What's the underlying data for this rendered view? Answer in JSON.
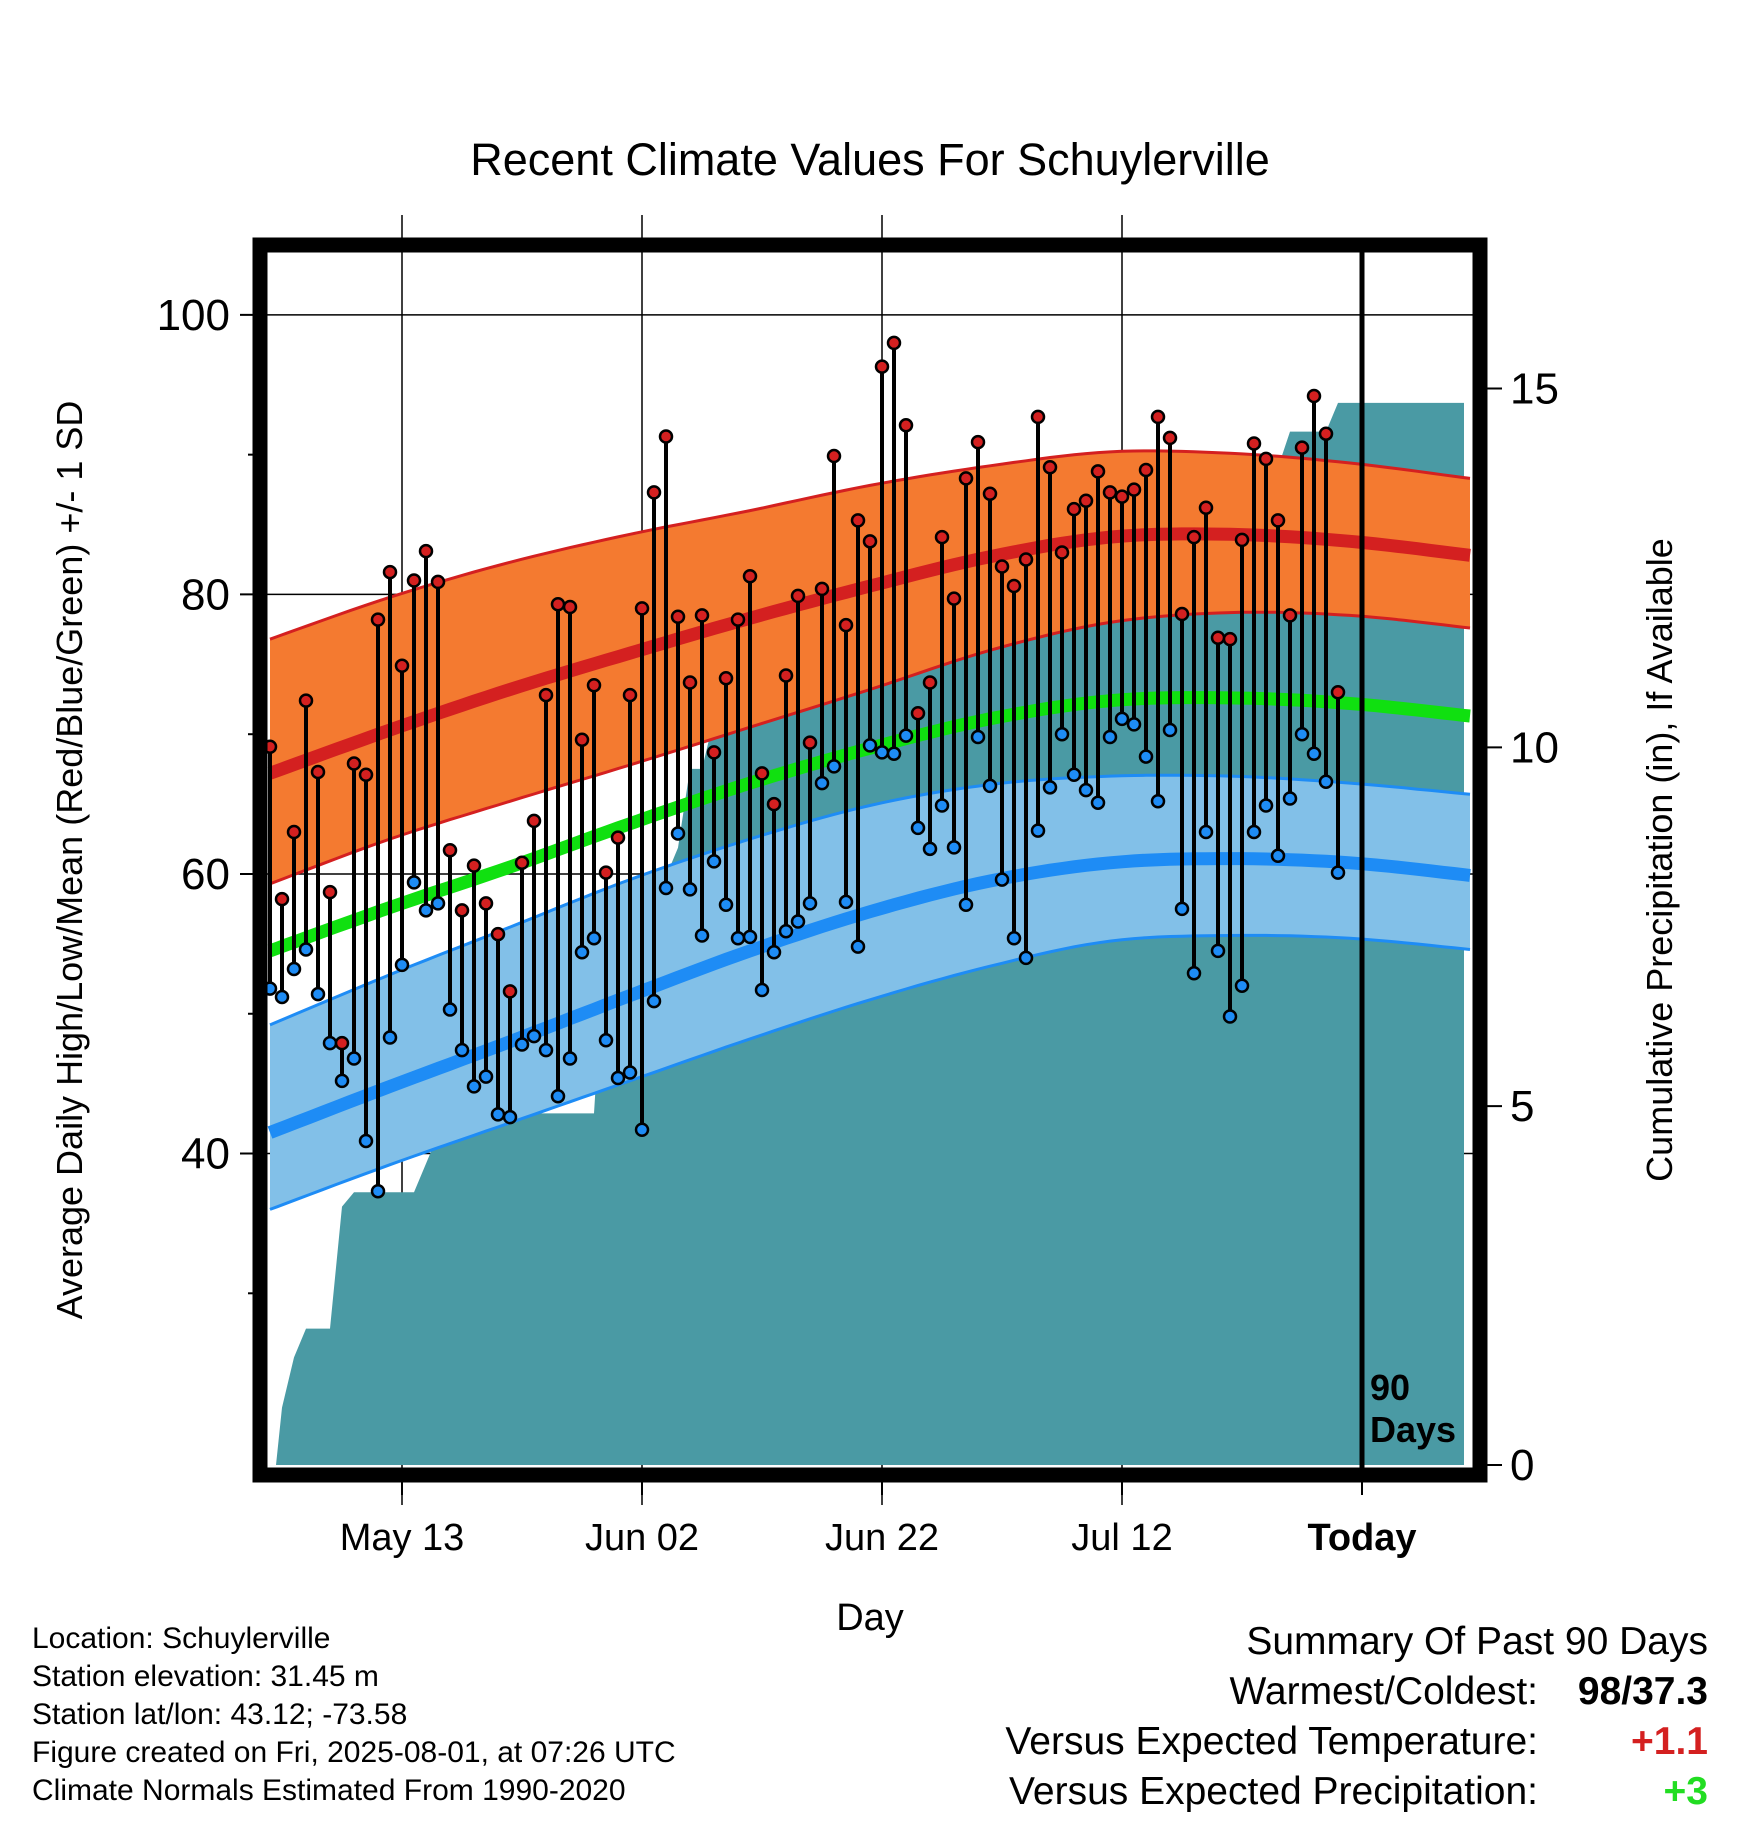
{
  "chart_data": {
    "type": "line",
    "title": "Recent Climate Values For Schuylerville",
    "xlabel": "Day",
    "ylabel": "Average Daily High/Low/Mean (Red/Blue/Green) +/- 1 SD",
    "y2label": "Cumulative Precipitation (in), If Available",
    "x_tick_labels": [
      "May 13",
      "Jun 02",
      "Jun 22",
      "Jul 12",
      "Today"
    ],
    "x_tick_days": [
      11,
      31,
      51,
      71,
      91
    ],
    "x_range_days": [
      0,
      100
    ],
    "ylim": [
      17,
      105
    ],
    "y_ticks": [
      40,
      60,
      80,
      100
    ],
    "y2lim": [
      0,
      17
    ],
    "y2_ticks": [
      0,
      5,
      10,
      15
    ],
    "today_day": 91,
    "today_label": "90 Days",
    "colors": {
      "high_band": "#f47a30",
      "high_mean": "#d42020",
      "low_band": "#82c0e8",
      "low_mean": "#1e8cf5",
      "mean_line": "#10e010",
      "precip": "#4a9aa4",
      "high_marker": "#d42020",
      "low_marker": "#1e8cf5"
    },
    "normal_high_mean": [
      [
        0,
        67.2
      ],
      [
        10,
        70.3
      ],
      [
        20,
        73.2
      ],
      [
        30,
        75.8
      ],
      [
        40,
        78.3
      ],
      [
        50,
        80.6
      ],
      [
        60,
        82.7
      ],
      [
        70,
        84.1
      ],
      [
        80,
        84.3
      ],
      [
        90,
        83.8
      ],
      [
        100,
        82.8
      ]
    ],
    "normal_high_upper": [
      [
        0,
        76.8
      ],
      [
        10,
        79.8
      ],
      [
        20,
        82.3
      ],
      [
        30,
        84.3
      ],
      [
        40,
        86.0
      ],
      [
        50,
        87.8
      ],
      [
        60,
        89.2
      ],
      [
        70,
        90.2
      ],
      [
        80,
        90.1
      ],
      [
        90,
        89.4
      ],
      [
        100,
        88.3
      ]
    ],
    "normal_high_lower": [
      [
        0,
        59.3
      ],
      [
        10,
        62.5
      ],
      [
        20,
        65.2
      ],
      [
        30,
        67.8
      ],
      [
        40,
        70.5
      ],
      [
        50,
        73.2
      ],
      [
        60,
        76.0
      ],
      [
        70,
        78.0
      ],
      [
        80,
        78.7
      ],
      [
        90,
        78.5
      ],
      [
        100,
        77.6
      ]
    ],
    "normal_low_mean": [
      [
        0,
        41.5
      ],
      [
        10,
        44.8
      ],
      [
        20,
        48.0
      ],
      [
        30,
        51.3
      ],
      [
        40,
        54.5
      ],
      [
        50,
        57.3
      ],
      [
        60,
        59.5
      ],
      [
        70,
        60.8
      ],
      [
        80,
        61.1
      ],
      [
        90,
        60.8
      ],
      [
        100,
        59.9
      ]
    ],
    "normal_low_upper": [
      [
        0,
        49.2
      ],
      [
        10,
        52.8
      ],
      [
        20,
        56.2
      ],
      [
        30,
        59.6
      ],
      [
        40,
        62.5
      ],
      [
        50,
        64.9
      ],
      [
        60,
        66.4
      ],
      [
        70,
        67.0
      ],
      [
        80,
        67.0
      ],
      [
        90,
        66.5
      ],
      [
        100,
        65.7
      ]
    ],
    "normal_low_lower": [
      [
        0,
        36.0
      ],
      [
        10,
        39.2
      ],
      [
        20,
        42.2
      ],
      [
        30,
        45.2
      ],
      [
        40,
        48.2
      ],
      [
        50,
        51.0
      ],
      [
        60,
        53.4
      ],
      [
        70,
        55.2
      ],
      [
        80,
        55.6
      ],
      [
        90,
        55.4
      ],
      [
        100,
        54.6
      ]
    ],
    "normal_mean": [
      [
        0,
        54.5
      ],
      [
        10,
        57.6
      ],
      [
        20,
        60.5
      ],
      [
        30,
        63.6
      ],
      [
        40,
        66.5
      ],
      [
        50,
        69.0
      ],
      [
        60,
        71.1
      ],
      [
        70,
        72.4
      ],
      [
        80,
        72.6
      ],
      [
        90,
        72.2
      ],
      [
        100,
        71.3
      ]
    ],
    "daily": [
      {
        "day": 0,
        "high": 69.1,
        "low": 51.8
      },
      {
        "day": 1,
        "high": 58.2,
        "low": 51.2
      },
      {
        "day": 2,
        "high": 63.0,
        "low": 53.2
      },
      {
        "day": 3,
        "high": 72.4,
        "low": 54.6
      },
      {
        "day": 4,
        "high": 67.3,
        "low": 51.4
      },
      {
        "day": 5,
        "high": 58.7,
        "low": 47.9
      },
      {
        "day": 6,
        "high": 47.9,
        "low": 45.2
      },
      {
        "day": 7,
        "high": 67.9,
        "low": 46.8
      },
      {
        "day": 8,
        "high": 67.1,
        "low": 40.9
      },
      {
        "day": 9,
        "high": 78.2,
        "low": 37.3
      },
      {
        "day": 10,
        "high": 81.6,
        "low": 48.3
      },
      {
        "day": 11,
        "high": 74.9,
        "low": 53.5
      },
      {
        "day": 12,
        "high": 81.0,
        "low": 59.4
      },
      {
        "day": 13,
        "high": 83.1,
        "low": 57.4
      },
      {
        "day": 14,
        "high": 80.9,
        "low": 57.9
      },
      {
        "day": 15,
        "high": 61.7,
        "low": 50.3
      },
      {
        "day": 16,
        "high": 57.4,
        "low": 47.4
      },
      {
        "day": 17,
        "high": 60.6,
        "low": 44.8
      },
      {
        "day": 18,
        "high": 57.9,
        "low": 45.5
      },
      {
        "day": 19,
        "high": 55.7,
        "low": 42.8
      },
      {
        "day": 20,
        "high": 51.6,
        "low": 42.6
      },
      {
        "day": 21,
        "high": 60.8,
        "low": 47.8
      },
      {
        "day": 22,
        "high": 63.8,
        "low": 48.4
      },
      {
        "day": 23,
        "high": 72.8,
        "low": 47.4
      },
      {
        "day": 24,
        "high": 79.3,
        "low": 44.1
      },
      {
        "day": 25,
        "high": 79.1,
        "low": 46.8
      },
      {
        "day": 26,
        "high": 69.6,
        "low": 54.4
      },
      {
        "day": 27,
        "high": 73.5,
        "low": 55.4
      },
      {
        "day": 28,
        "high": 60.1,
        "low": 48.1
      },
      {
        "day": 29,
        "high": 62.6,
        "low": 45.4
      },
      {
        "day": 30,
        "high": 72.8,
        "low": 45.8
      },
      {
        "day": 31,
        "high": 79.0,
        "low": 41.7
      },
      {
        "day": 32,
        "high": 87.3,
        "low": 50.9
      },
      {
        "day": 33,
        "high": 91.3,
        "low": 59.0
      },
      {
        "day": 34,
        "high": 78.4,
        "low": 62.9
      },
      {
        "day": 35,
        "high": 73.7,
        "low": 58.9
      },
      {
        "day": 36,
        "high": 78.5,
        "low": 55.6
      },
      {
        "day": 37,
        "high": 68.7,
        "low": 60.9
      },
      {
        "day": 38,
        "high": 74.0,
        "low": 57.8
      },
      {
        "day": 39,
        "high": 78.2,
        "low": 55.4
      },
      {
        "day": 40,
        "high": 81.3,
        "low": 55.5
      },
      {
        "day": 41,
        "high": 67.2,
        "low": 51.7
      },
      {
        "day": 42,
        "high": 65.0,
        "low": 54.4
      },
      {
        "day": 43,
        "high": 74.2,
        "low": 55.9
      },
      {
        "day": 44,
        "high": 79.9,
        "low": 56.6
      },
      {
        "day": 45,
        "high": 69.4,
        "low": 57.9
      },
      {
        "day": 46,
        "high": 80.4,
        "low": 66.5
      },
      {
        "day": 47,
        "high": 89.9,
        "low": 67.7
      },
      {
        "day": 48,
        "high": 77.8,
        "low": 58.0
      },
      {
        "day": 49,
        "high": 85.3,
        "low": 54.8
      },
      {
        "day": 50,
        "high": 83.8,
        "low": 69.2
      },
      {
        "day": 51,
        "high": 96.3,
        "low": 68.7
      },
      {
        "day": 52,
        "high": 98.0,
        "low": 68.6
      },
      {
        "day": 53,
        "high": 92.1,
        "low": 69.9
      },
      {
        "day": 54,
        "high": 71.5,
        "low": 63.3
      },
      {
        "day": 55,
        "high": 73.7,
        "low": 61.8
      },
      {
        "day": 56,
        "high": 84.1,
        "low": 64.9
      },
      {
        "day": 57,
        "high": 79.7,
        "low": 61.9
      },
      {
        "day": 58,
        "high": 88.3,
        "low": 57.8
      },
      {
        "day": 59,
        "high": 90.9,
        "low": 69.8
      },
      {
        "day": 60,
        "high": 87.2,
        "low": 66.3
      },
      {
        "day": 61,
        "high": 82.0,
        "low": 59.6
      },
      {
        "day": 62,
        "high": 80.6,
        "low": 55.4
      },
      {
        "day": 63,
        "high": 82.5,
        "low": 54.0
      },
      {
        "day": 64,
        "high": 92.7,
        "low": 63.1
      },
      {
        "day": 65,
        "high": 89.1,
        "low": 66.2
      },
      {
        "day": 66,
        "high": 83.0,
        "low": 70.0
      },
      {
        "day": 67,
        "high": 86.1,
        "low": 67.1
      },
      {
        "day": 68,
        "high": 86.7,
        "low": 66.0
      },
      {
        "day": 69,
        "high": 88.8,
        "low": 65.1
      },
      {
        "day": 70,
        "high": 87.3,
        "low": 69.8
      },
      {
        "day": 71,
        "high": 87.0,
        "low": 71.1
      },
      {
        "day": 72,
        "high": 87.5,
        "low": 70.7
      },
      {
        "day": 73,
        "high": 88.9,
        "low": 68.4
      },
      {
        "day": 74,
        "high": 92.7,
        "low": 65.2
      },
      {
        "day": 75,
        "high": 91.2,
        "low": 70.3
      },
      {
        "day": 76,
        "high": 78.6,
        "low": 57.5
      },
      {
        "day": 77,
        "high": 84.1,
        "low": 52.9
      },
      {
        "day": 78,
        "high": 86.2,
        "low": 63.0
      },
      {
        "day": 79,
        "high": 76.9,
        "low": 54.5
      },
      {
        "day": 80,
        "high": 76.8,
        "low": 49.8
      },
      {
        "day": 81,
        "high": 83.9,
        "low": 52.0
      },
      {
        "day": 82,
        "high": 90.8,
        "low": 63.0
      },
      {
        "day": 83,
        "high": 89.7,
        "low": 64.9
      },
      {
        "day": 84,
        "high": 85.3,
        "low": 61.3
      },
      {
        "day": 85,
        "high": 78.5,
        "low": 65.4
      },
      {
        "day": 86,
        "high": 90.5,
        "low": 70.0
      },
      {
        "day": 87,
        "high": 94.2,
        "low": 68.6
      },
      {
        "day": 88,
        "high": 91.5,
        "low": 66.6
      },
      {
        "day": 89,
        "high": 73.0,
        "low": 60.1
      }
    ],
    "precip_cumulative": [
      [
        0.5,
        0.0
      ],
      [
        1,
        0.8
      ],
      [
        2,
        1.5
      ],
      [
        3,
        1.9
      ],
      [
        4,
        1.9
      ],
      [
        5,
        1.9
      ],
      [
        6,
        3.6
      ],
      [
        7,
        3.8
      ],
      [
        8,
        3.8
      ],
      [
        12,
        3.8
      ],
      [
        13,
        4.2
      ],
      [
        14,
        4.6
      ],
      [
        17,
        4.6
      ],
      [
        18,
        4.7
      ],
      [
        20,
        4.9
      ],
      [
        23,
        4.9
      ],
      [
        27,
        4.9
      ],
      [
        28,
        7.6
      ],
      [
        31,
        7.6
      ],
      [
        32,
        8.1
      ],
      [
        33,
        8.2
      ],
      [
        34,
        8.6
      ],
      [
        35,
        9.7
      ],
      [
        36,
        9.7
      ],
      [
        37,
        10.4
      ],
      [
        38,
        10.6
      ],
      [
        41,
        10.6
      ],
      [
        43,
        10.7
      ],
      [
        45,
        11.0
      ],
      [
        48,
        11.0
      ],
      [
        50,
        11.0
      ],
      [
        51,
        11.3
      ],
      [
        56,
        11.3
      ],
      [
        57,
        11.6
      ],
      [
        61,
        11.6
      ],
      [
        62,
        11.8
      ],
      [
        67,
        11.8
      ],
      [
        68,
        12.4
      ],
      [
        69,
        12.4
      ],
      [
        70,
        13.4
      ],
      [
        74,
        13.4
      ],
      [
        75,
        13.7
      ],
      [
        77,
        13.7
      ],
      [
        78,
        13.9
      ],
      [
        84,
        13.9
      ],
      [
        85,
        14.4
      ],
      [
        88,
        14.4
      ],
      [
        89,
        14.8
      ],
      [
        99.5,
        14.8
      ]
    ]
  },
  "info": {
    "location": "Location: Schuylerville",
    "elevation": "Station elevation: 31.45 m",
    "latlon": "Station lat/lon: 43.12; -73.58",
    "created": "Figure created on Fri, 2025-08-01, at 07:26 UTC",
    "normals": "Climate Normals Estimated From 1990-2020"
  },
  "summary": {
    "title": "Summary Of Past 90 Days",
    "warm_cold_label": "Warmest/Coldest:",
    "warm_cold_value": "98/37.3",
    "temp_label": "Versus Expected Temperature:",
    "temp_value": "+1.1",
    "temp_color": "#d42020",
    "precip_label": "Versus Expected Precipitation:",
    "precip_value": "+3",
    "precip_color": "#22dd22"
  }
}
